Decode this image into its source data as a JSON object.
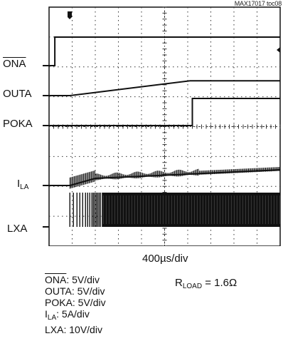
{
  "reference": "MAX17017 toc08",
  "chart_data": {
    "type": "line",
    "title": "",
    "x_unit_per_div": "400µs/div",
    "x_divisions": 10,
    "y_divisions": 8,
    "grid": true,
    "channels": [
      {
        "name": "ONA",
        "overbar": true,
        "scale": "5V/div",
        "description": "enable input, steps high",
        "points": [
          [
            0,
            0
          ],
          [
            0.25,
            0
          ],
          [
            0.25,
            1
          ],
          [
            10,
            1
          ]
        ]
      },
      {
        "name": "OUTA",
        "overbar": false,
        "scale": "5V/div",
        "description": "output voltage soft-start ramp",
        "points": [
          [
            0,
            0
          ],
          [
            0.9,
            0
          ],
          [
            6.1,
            0.52
          ],
          [
            10,
            0.52
          ]
        ]
      },
      {
        "name": "POKA",
        "overbar": false,
        "scale": "5V/div",
        "description": "power-good output, goes high after soft-start",
        "points": [
          [
            0,
            0
          ],
          [
            6.2,
            0
          ],
          [
            6.2,
            0.95
          ],
          [
            10,
            0.95
          ]
        ]
      },
      {
        "name": "I",
        "sub": "LA",
        "overbar": false,
        "scale": "5A/div",
        "description": "inductor current ramping with ripple",
        "points": [
          [
            0,
            0
          ],
          [
            0.9,
            0
          ],
          [
            2.0,
            0.25
          ],
          [
            7.4,
            0.45
          ],
          [
            10,
            0.55
          ]
        ]
      },
      {
        "name": "LXA",
        "overbar": false,
        "scale": "10V/div",
        "description": "switching node, pulse skip then continuous",
        "points": [
          [
            0,
            0
          ],
          [
            0.9,
            0
          ],
          [
            10,
            0
          ]
        ]
      }
    ],
    "scales_legend": [
      {
        "name": "ONA",
        "value": ": 5V/div",
        "overbar": true
      },
      {
        "name": "OUTA",
        "value": ": 5V/div",
        "overbar": false
      },
      {
        "name": "POKA",
        "value": ": 5V/div",
        "overbar": false
      },
      {
        "name": "I",
        "sub": "LA",
        "value": ": 5A/div",
        "overbar": false
      },
      {
        "name": "LXA",
        "value": ": 10V/div",
        "overbar": false
      }
    ],
    "condition": {
      "name": "R",
      "sub": "LOAD",
      "value": " = 1.6Ω"
    }
  },
  "labels": {
    "ona": "ONA",
    "outa": "OUTA",
    "poka": "POKA",
    "ila_main": "I",
    "ila_sub": "LA",
    "lxa": "LXA",
    "timebase": "400µs/div",
    "scale_ona_name": "ONA",
    "scale_ona_value": ": 5V/div",
    "scale_outa": "OUTA: 5V/div",
    "scale_poka": "POKA: 5V/div",
    "scale_ila_main": "I",
    "scale_ila_sub": "LA",
    "scale_ila_value": ": 5A/div",
    "scale_lxa": "LXA: 10V/div",
    "rload_main": "R",
    "rload_sub": "LOAD",
    "rload_value": " = 1.6Ω"
  }
}
